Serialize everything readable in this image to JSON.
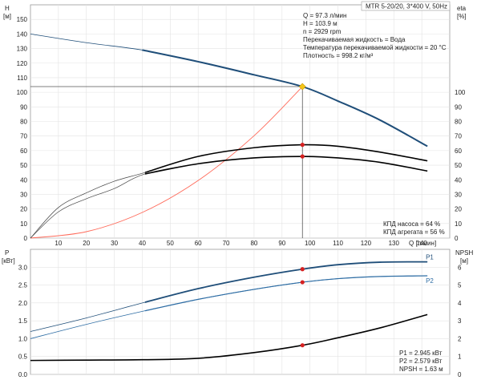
{
  "header": {
    "model": "MTR 5-20/20, 3*400 V, 50Hz"
  },
  "info_top": [
    "Q = 97.3 л/мин",
    "H = 103.9 м",
    "n = 2929 rpm",
    "Перекачиваемая жидкость = Вода",
    "Температура перекачиваемой жидкости = 20 °C",
    "Плотность = 998.2 кг/м³"
  ],
  "info_eff": [
    "КПД насоса = 64 %",
    "КПД агрегата = 56 %"
  ],
  "info_bottom": [
    "P1 = 2.945 кВт",
    "P2 = 2.579 кВт",
    "NPSH = 1.63 м"
  ],
  "colors": {
    "head": "#1f4e79",
    "power": "#2e6da4",
    "efficiency": "#000000",
    "system": "#ff6a5a",
    "operating_point": "#d62020",
    "duty_marker": "#f5c518"
  },
  "chart_data": [
    {
      "type": "line",
      "axes": {
        "x": {
          "label_unit": "Q [л/мин]",
          "lim": [
            0,
            150
          ],
          "ticks": [
            10,
            20,
            30,
            40,
            50,
            60,
            70,
            80,
            90,
            100,
            110,
            120,
            130,
            140
          ]
        },
        "y_left": {
          "label": "H",
          "unit": "[м]",
          "lim": [
            0,
            160
          ],
          "ticks": [
            0,
            10,
            20,
            30,
            40,
            50,
            60,
            70,
            80,
            90,
            100,
            110,
            120,
            130,
            140,
            150
          ]
        },
        "y_right": {
          "label": "eta",
          "unit": "[%]",
          "lim": [
            0,
            160
          ],
          "ticks": [
            0,
            10,
            20,
            30,
            40,
            50,
            60,
            70,
            80,
            90,
            100
          ]
        }
      },
      "series": [
        {
          "name": "H",
          "color": "#1f4e79",
          "x": [
            0,
            20,
            40,
            60,
            80,
            97.3,
            110,
            125,
            142
          ],
          "y": [
            140,
            134,
            129,
            121,
            112,
            103.9,
            94,
            81,
            63
          ]
        },
        {
          "name": "КПД насоса",
          "color": "#000000",
          "x": [
            0,
            10,
            20,
            30,
            41,
            60,
            80,
            97.3,
            110,
            125,
            142
          ],
          "y": [
            0,
            21,
            31,
            39,
            45,
            56,
            62,
            64,
            63,
            59,
            53
          ]
        },
        {
          "name": "КПД агрегата",
          "color": "#000000",
          "x": [
            0,
            10,
            20,
            30,
            41,
            60,
            80,
            97.3,
            110,
            125,
            142
          ],
          "y": [
            0,
            18,
            27,
            34,
            44,
            51,
            55,
            56,
            55,
            52,
            46
          ]
        },
        {
          "name": "system",
          "color": "#ff6a5a",
          "x": [
            0,
            20,
            40,
            60,
            80,
            97.3
          ],
          "y": [
            0,
            4.4,
            17.6,
            39.5,
            70.2,
            103.9
          ]
        }
      ],
      "operating_point": {
        "Q": 97.3,
        "H": 103.9,
        "eta_pump": 64,
        "eta_unit": 56
      }
    },
    {
      "type": "line",
      "axes": {
        "x": {
          "lim": [
            0,
            150
          ]
        },
        "y_left": {
          "label": "P",
          "unit": "[кВт]",
          "lim": [
            0,
            3.5
          ],
          "ticks": [
            0,
            0.5,
            1,
            1.5,
            2,
            2.5,
            3
          ]
        },
        "y_right": {
          "label": "NPSH",
          "unit": "[м]",
          "lim": [
            0,
            7
          ],
          "ticks": [
            0,
            1,
            2,
            3,
            4,
            5,
            6
          ]
        }
      },
      "series": [
        {
          "name": "P1",
          "color": "#1f4e79",
          "x": [
            0,
            20,
            41,
            60,
            80,
            97.3,
            110,
            125,
            142
          ],
          "y": [
            1.2,
            1.58,
            2.02,
            2.4,
            2.72,
            2.945,
            3.07,
            3.14,
            3.15
          ]
        },
        {
          "name": "P2",
          "color": "#2e6da4",
          "x": [
            0,
            20,
            41,
            60,
            80,
            97.3,
            110,
            125,
            142
          ],
          "y": [
            1.0,
            1.4,
            1.78,
            2.1,
            2.38,
            2.579,
            2.68,
            2.74,
            2.76
          ]
        },
        {
          "name": "NPSH",
          "color": "#000000",
          "x": [
            0,
            20,
            40,
            60,
            80,
            97.3,
            110,
            125,
            142
          ],
          "y": [
            0.78,
            0.8,
            0.82,
            0.9,
            1.22,
            1.63,
            2.05,
            2.6,
            3.35
          ]
        }
      ],
      "operating_point": {
        "Q": 97.3,
        "P1": 2.945,
        "P2": 2.579,
        "NPSH": 1.63
      }
    }
  ]
}
